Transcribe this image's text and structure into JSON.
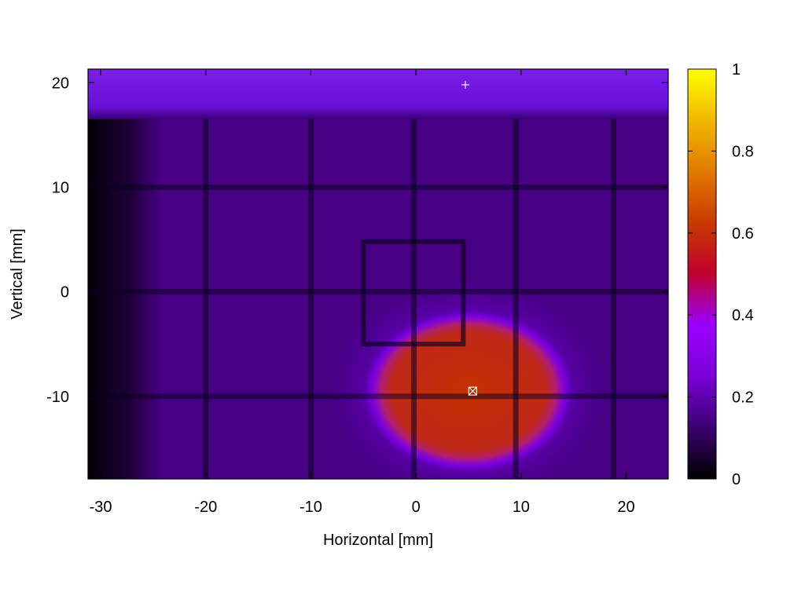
{
  "chart_data": {
    "type": "heatmap",
    "title": "",
    "xlabel": "Horizontal [mm]",
    "ylabel": "Vertical [mm]",
    "xlim": [
      -31.2,
      24
    ],
    "ylim": [
      -17.9,
      21.3
    ],
    "x_ticks": [
      -30,
      -20,
      -10,
      0,
      10,
      20
    ],
    "y_ticks": [
      -10,
      0,
      10,
      20
    ],
    "colorbar": {
      "range": [
        0,
        1
      ],
      "ticks": [
        0,
        0.2,
        0.4,
        0.6,
        0.8,
        1
      ],
      "tick_labels": [
        "0",
        "0.2",
        "0.4",
        "0.6",
        "0.8",
        "1"
      ],
      "palette": [
        "#000000",
        "#3a0070",
        "#7a00d6",
        "#9a00ff",
        "#c00030",
        "#c83a00",
        "#e07a00",
        "#f0b800",
        "#ffff00"
      ]
    },
    "background_level": 0.15,
    "top_band": {
      "y_range": [
        16.5,
        21.3
      ],
      "level": 0.2
    },
    "dark_left_edge_x": -25,
    "hot_spot": {
      "center": [
        5,
        -9.5
      ],
      "half_width": 9,
      "half_height": 7,
      "level": 0.5,
      "halo_level": 0.3
    },
    "shadow_grid": {
      "vertical_lines_x": [
        -20,
        -10,
        -0.2,
        9.5,
        18.8
      ],
      "horizontal_lines_y": [
        10,
        0,
        -10
      ],
      "inner_square": {
        "x_range": [
          -5,
          4.5
        ],
        "y_range": [
          -5,
          4.8
        ]
      }
    },
    "markers": [
      {
        "kind": "plus",
        "x": 4.7,
        "y": 19.8
      },
      {
        "kind": "boxed-cross",
        "x": 5.4,
        "y": -9.5
      }
    ],
    "grid": false,
    "legend": "none"
  }
}
